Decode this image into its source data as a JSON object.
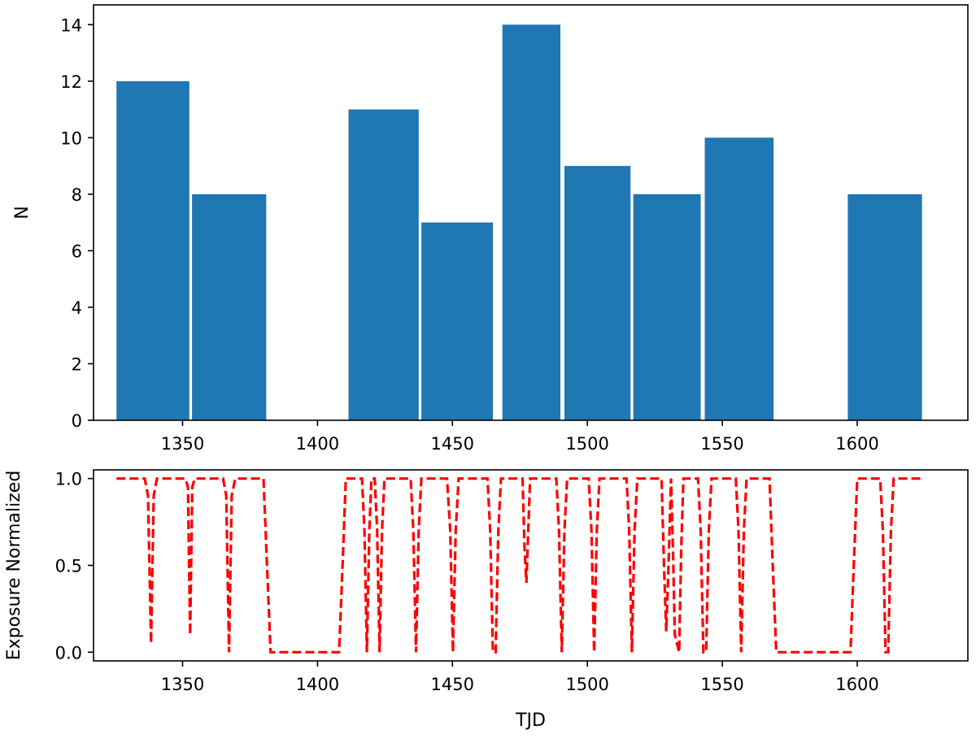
{
  "chart_data": [
    {
      "type": "bar",
      "xlabel": "",
      "ylabel": "N",
      "xlim": [
        1317,
        1641
      ],
      "ylim": [
        0,
        14.7
      ],
      "xticks": [
        1350,
        1400,
        1450,
        1500,
        1550,
        1600
      ],
      "yticks": [
        0,
        2,
        4,
        6,
        8,
        10,
        12,
        14
      ],
      "bar_color": "#1f77b4",
      "bars": [
        {
          "x0": 1325.5,
          "x1": 1352.5,
          "value": 12
        },
        {
          "x0": 1353.5,
          "x1": 1381.0,
          "value": 8
        },
        {
          "x0": 1411.5,
          "x1": 1437.5,
          "value": 11
        },
        {
          "x0": 1438.5,
          "x1": 1465.0,
          "value": 7
        },
        {
          "x0": 1468.5,
          "x1": 1490.0,
          "value": 14
        },
        {
          "x0": 1491.5,
          "x1": 1516.0,
          "value": 9
        },
        {
          "x0": 1517.0,
          "x1": 1542.0,
          "value": 8
        },
        {
          "x0": 1543.5,
          "x1": 1569.0,
          "value": 10
        },
        {
          "x0": 1596.5,
          "x1": 1624.0,
          "value": 8
        }
      ]
    },
    {
      "type": "line",
      "xlabel": "TJD",
      "ylabel": "Exposure Normalized",
      "xlim": [
        1317,
        1641
      ],
      "ylim": [
        -0.05,
        1.05
      ],
      "xticks": [
        1350,
        1400,
        1450,
        1500,
        1550,
        1600
      ],
      "yticks": [
        0.0,
        0.5,
        1.0
      ],
      "ytick_labels": [
        "0.0",
        "0.5",
        "1.0"
      ],
      "line_color": "#ff0000",
      "line_style": "dashed",
      "points": [
        [
          1325.5,
          1.0
        ],
        [
          1336.0,
          1.0
        ],
        [
          1337.2,
          0.9
        ],
        [
          1338.3,
          0.05
        ],
        [
          1339.3,
          0.9
        ],
        [
          1340.5,
          1.0
        ],
        [
          1351.0,
          1.0
        ],
        [
          1352.0,
          0.95
        ],
        [
          1352.8,
          0.1
        ],
        [
          1353.6,
          0.95
        ],
        [
          1354.5,
          1.0
        ],
        [
          1365.0,
          1.0
        ],
        [
          1366.2,
          0.9
        ],
        [
          1367.2,
          0.0
        ],
        [
          1368.2,
          0.9
        ],
        [
          1369.5,
          1.0
        ],
        [
          1380.0,
          1.0
        ],
        [
          1381.3,
          0.5
        ],
        [
          1382.6,
          0.0
        ],
        [
          1408.0,
          0.0
        ],
        [
          1409.3,
          0.5
        ],
        [
          1410.5,
          1.0
        ],
        [
          1416.5,
          1.0
        ],
        [
          1417.4,
          0.7
        ],
        [
          1418.3,
          0.0
        ],
        [
          1419.2,
          0.7
        ],
        [
          1420.0,
          1.0
        ],
        [
          1421.2,
          1.0
        ],
        [
          1422.1,
          0.7
        ],
        [
          1423.0,
          0.0
        ],
        [
          1423.9,
          0.7
        ],
        [
          1424.8,
          1.0
        ],
        [
          1434.5,
          1.0
        ],
        [
          1435.5,
          0.7
        ],
        [
          1436.5,
          0.0
        ],
        [
          1437.5,
          0.7
        ],
        [
          1438.5,
          1.0
        ],
        [
          1448.0,
          1.0
        ],
        [
          1449.2,
          0.7
        ],
        [
          1450.2,
          0.0
        ],
        [
          1451.2,
          0.7
        ],
        [
          1452.3,
          1.0
        ],
        [
          1463.0,
          1.0
        ],
        [
          1464.0,
          0.7
        ],
        [
          1465.0,
          0.0
        ],
        [
          1466.0,
          0.0
        ],
        [
          1467.0,
          0.7
        ],
        [
          1468.0,
          1.0
        ],
        [
          1476.0,
          1.0
        ],
        [
          1476.7,
          0.6
        ],
        [
          1477.4,
          0.4
        ],
        [
          1478.1,
          0.7
        ],
        [
          1478.8,
          1.0
        ],
        [
          1488.5,
          1.0
        ],
        [
          1489.5,
          0.7
        ],
        [
          1490.5,
          0.0
        ],
        [
          1491.5,
          0.7
        ],
        [
          1492.5,
          1.0
        ],
        [
          1500.5,
          1.0
        ],
        [
          1501.5,
          0.7
        ],
        [
          1502.5,
          0.0
        ],
        [
          1503.5,
          0.7
        ],
        [
          1504.5,
          1.0
        ],
        [
          1514.5,
          1.0
        ],
        [
          1515.5,
          0.7
        ],
        [
          1516.5,
          0.0
        ],
        [
          1517.5,
          0.7
        ],
        [
          1518.5,
          1.0
        ],
        [
          1527.5,
          1.0
        ],
        [
          1528.4,
          0.5
        ],
        [
          1529.2,
          0.12
        ],
        [
          1530.1,
          0.5
        ],
        [
          1531.0,
          1.0
        ],
        [
          1531.7,
          0.6
        ],
        [
          1532.4,
          0.1
        ],
        [
          1533.2,
          0.05
        ],
        [
          1534.0,
          0.0
        ],
        [
          1534.8,
          0.6
        ],
        [
          1535.6,
          1.0
        ],
        [
          1541.0,
          1.0
        ],
        [
          1542.0,
          0.7
        ],
        [
          1543.0,
          0.0
        ],
        [
          1544.0,
          0.0
        ],
        [
          1545.0,
          0.7
        ],
        [
          1546.0,
          1.0
        ],
        [
          1555.0,
          1.0
        ],
        [
          1556.0,
          0.7
        ],
        [
          1557.0,
          0.0
        ],
        [
          1558.0,
          0.7
        ],
        [
          1559.0,
          1.0
        ],
        [
          1567.5,
          1.0
        ],
        [
          1568.7,
          0.5
        ],
        [
          1570.0,
          0.0
        ],
        [
          1597.5,
          0.0
        ],
        [
          1598.7,
          0.5
        ],
        [
          1600.0,
          1.0
        ],
        [
          1608.5,
          1.0
        ],
        [
          1609.5,
          0.7
        ],
        [
          1610.5,
          0.0
        ],
        [
          1611.5,
          0.0
        ],
        [
          1612.5,
          0.7
        ],
        [
          1613.5,
          1.0
        ],
        [
          1624.0,
          1.0
        ]
      ]
    }
  ]
}
